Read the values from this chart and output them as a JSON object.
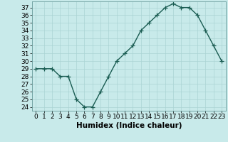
{
  "x": [
    0,
    1,
    2,
    3,
    4,
    5,
    6,
    7,
    8,
    9,
    10,
    11,
    12,
    13,
    14,
    15,
    16,
    17,
    18,
    19,
    20,
    21,
    22,
    23
  ],
  "y": [
    29,
    29,
    29,
    28,
    28,
    25,
    24,
    24,
    26,
    28,
    30,
    31,
    32,
    34,
    35,
    36,
    37,
    37.5,
    37,
    37,
    36,
    34,
    32,
    30
  ],
  "line_color": "#1a5c52",
  "marker_color": "#1a5c52",
  "bg_color": "#c8eaea",
  "grid_color": "#aad4d4",
  "xlabel": "Humidex (Indice chaleur)",
  "xlim": [
    -0.5,
    23.5
  ],
  "ylim": [
    23.5,
    37.8
  ],
  "yticks": [
    24,
    25,
    26,
    27,
    28,
    29,
    30,
    31,
    32,
    33,
    34,
    35,
    36,
    37
  ],
  "xticks": [
    0,
    1,
    2,
    3,
    4,
    5,
    6,
    7,
    8,
    9,
    10,
    11,
    12,
    13,
    14,
    15,
    16,
    17,
    18,
    19,
    20,
    21,
    22,
    23
  ],
  "xlabel_fontsize": 7.5,
  "tick_fontsize": 6.5,
  "line_width": 1.0,
  "marker_size": 4
}
